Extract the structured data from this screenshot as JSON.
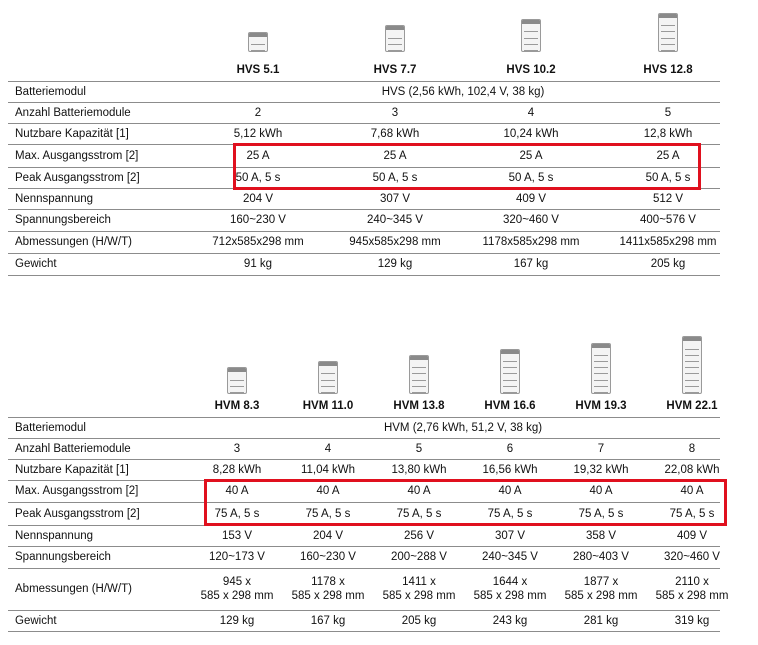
{
  "table1": {
    "models": [
      "HVS 5.1",
      "HVS 7.7",
      "HVS 10.2",
      "HVS 12.8"
    ],
    "modules_count": [
      2,
      3,
      4,
      5
    ],
    "rows": [
      {
        "label": "Batteriemodul",
        "span": "HVS (2,56 kWh, 102,4 V, 38 kg)"
      },
      {
        "label": "Anzahl Batteriemodule",
        "values": [
          "2",
          "3",
          "4",
          "5"
        ]
      },
      {
        "label": "Nutzbare Kapazität [1]",
        "values": [
          "5,12 kWh",
          "7,68 kWh",
          "10,24 kWh",
          "12,8 kWh"
        ]
      },
      {
        "label": "Max. Ausgangsstrom [2]",
        "values": [
          "25 A",
          "25 A",
          "25 A",
          "25 A"
        ]
      },
      {
        "label": "Peak Ausgangsstrom [2]",
        "values": [
          "50 A, 5 s",
          "50 A, 5 s",
          "50 A, 5 s",
          "50 A, 5 s"
        ]
      },
      {
        "label": "Nennspannung",
        "values": [
          "204 V",
          "307 V",
          "409 V",
          "512 V"
        ]
      },
      {
        "label": "Spannungsbereich",
        "values": [
          "160~230 V",
          "240~345 V",
          "320~460 V",
          "400~576 V"
        ]
      },
      {
        "label": "Abmessungen (H/W/T)",
        "values": [
          "712x585x298 mm",
          "945x585x298 mm",
          "1178x585x298 mm",
          "1411x585x298 mm"
        ]
      },
      {
        "label": "Gewicht",
        "values": [
          "91 kg",
          "129 kg",
          "167 kg",
          "205 kg"
        ]
      }
    ]
  },
  "table2": {
    "models": [
      "HVM 8.3",
      "HVM 11.0",
      "HVM 13.8",
      "HVM 16.6",
      "HVM 19.3",
      "HVM 22.1"
    ],
    "modules_count": [
      3,
      4,
      5,
      6,
      7,
      8
    ],
    "rows": [
      {
        "label": "Batteriemodul",
        "span": "HVM (2,76 kWh, 51,2 V, 38 kg)"
      },
      {
        "label": "Anzahl Batteriemodule",
        "values": [
          "3",
          "4",
          "5",
          "6",
          "7",
          "8"
        ]
      },
      {
        "label": "Nutzbare Kapazität [1]",
        "values": [
          "8,28 kWh",
          "11,04 kWh",
          "13,80 kWh",
          "16,56 kWh",
          "19,32 kWh",
          "22,08 kWh"
        ]
      },
      {
        "label": "Max. Ausgangsstrom [2]",
        "values": [
          "40 A",
          "40 A",
          "40 A",
          "40 A",
          "40 A",
          "40 A"
        ]
      },
      {
        "label": "Peak Ausgangsstrom [2]",
        "values": [
          "75 A, 5 s",
          "75 A, 5 s",
          "75 A, 5 s",
          "75 A, 5 s",
          "75 A, 5 s",
          "75 A, 5 s"
        ]
      },
      {
        "label": "Nennspannung",
        "values": [
          "153 V",
          "204 V",
          "256 V",
          "307 V",
          "358 V",
          "409 V"
        ]
      },
      {
        "label": "Spannungsbereich",
        "values": [
          "120~173 V",
          "160~230 V",
          "200~288 V",
          "240~345 V",
          "280~403 V",
          "320~460 V"
        ]
      },
      {
        "label": "Abmessungen (H/W/T)",
        "values_line1": [
          "945 x",
          "1178 x",
          "1411 x",
          "1644 x",
          "1877 x",
          "2110 x"
        ],
        "values_line2": [
          "585 x 298 mm",
          "585 x 298 mm",
          "585 x 298 mm",
          "585 x 298 mm",
          "585 x 298 mm",
          "585 x 298 mm"
        ]
      },
      {
        "label": "Gewicht",
        "values": [
          "129 kg",
          "167 kg",
          "205 kg",
          "243 kg",
          "281 kg",
          "319 kg"
        ]
      }
    ]
  },
  "colors": {
    "highlight": "#e0101e",
    "rule": "#8c8c8c"
  },
  "icons": [
    "battery-tower-icon"
  ]
}
